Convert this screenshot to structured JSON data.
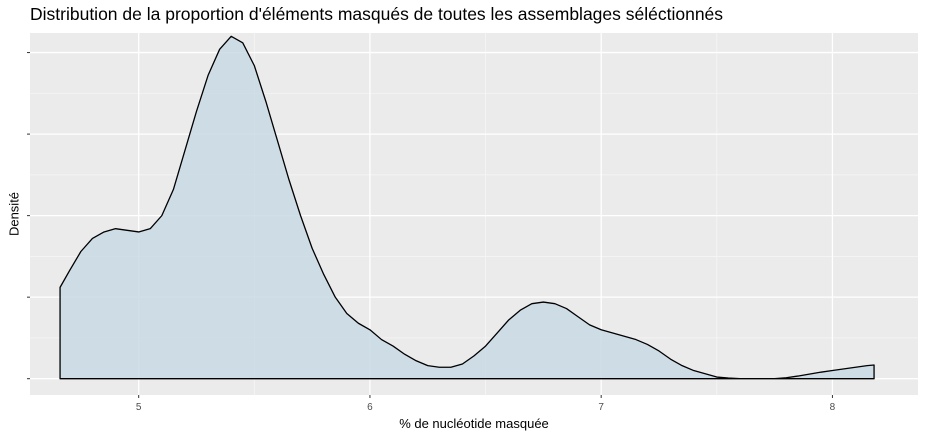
{
  "chart_data": {
    "type": "area",
    "title": "Distribution de la proportion d'éléments masqués de toutes les assemblages séléctionnés",
    "xlabel": "% de nucléotide masquée",
    "ylabel": "Densité",
    "xlim": [
      4.53,
      8.37
    ],
    "ylim": [
      -0.05,
      1.06
    ],
    "x_ticks": [
      5,
      6,
      7,
      8
    ],
    "x_tick_labels": [
      "5",
      "6",
      "7",
      "8"
    ],
    "y_ticks": [
      0,
      0.25,
      0.5,
      0.75,
      1.0
    ],
    "y_tick_labels_shown": false,
    "grid": true,
    "fill_color": "#c9d9e4",
    "line_color": "#000000",
    "panel_color": "#ebebeb",
    "series": [
      {
        "x": [
          4.66,
          4.7,
          4.75,
          4.8,
          4.85,
          4.9,
          4.95,
          5.0,
          5.05,
          5.1,
          5.15,
          5.2,
          5.25,
          5.3,
          5.35,
          5.4,
          5.45,
          5.5,
          5.55,
          5.6,
          5.65,
          5.7,
          5.75,
          5.8,
          5.85,
          5.9,
          5.95,
          6.0,
          6.05,
          6.1,
          6.15,
          6.2,
          6.25,
          6.3,
          6.35,
          6.4,
          6.45,
          6.5,
          6.55,
          6.6,
          6.65,
          6.7,
          6.75,
          6.8,
          6.85,
          6.9,
          6.95,
          7.0,
          7.05,
          7.1,
          7.15,
          7.2,
          7.25,
          7.3,
          7.35,
          7.4,
          7.45,
          7.5,
          7.55,
          7.6,
          7.65,
          7.7,
          7.75,
          7.8,
          7.85,
          7.9,
          7.95,
          8.0,
          8.05,
          8.1,
          8.15,
          8.18
        ],
        "y": [
          0.28,
          0.33,
          0.39,
          0.43,
          0.45,
          0.46,
          0.455,
          0.45,
          0.46,
          0.5,
          0.58,
          0.7,
          0.82,
          0.93,
          1.01,
          1.05,
          1.03,
          0.96,
          0.85,
          0.73,
          0.61,
          0.5,
          0.4,
          0.32,
          0.25,
          0.2,
          0.17,
          0.15,
          0.12,
          0.1,
          0.075,
          0.055,
          0.04,
          0.035,
          0.035,
          0.045,
          0.07,
          0.1,
          0.14,
          0.18,
          0.21,
          0.23,
          0.235,
          0.23,
          0.215,
          0.19,
          0.165,
          0.15,
          0.14,
          0.13,
          0.12,
          0.105,
          0.085,
          0.06,
          0.04,
          0.025,
          0.015,
          0.005,
          0.002,
          0.0,
          0.0,
          0.0,
          0.0,
          0.003,
          0.008,
          0.014,
          0.02,
          0.025,
          0.03,
          0.035,
          0.04,
          0.042
        ]
      }
    ]
  }
}
